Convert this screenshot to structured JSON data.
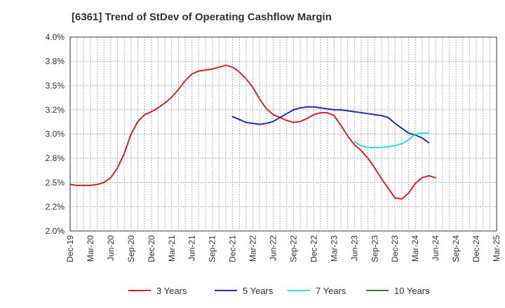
{
  "chart_data": {
    "type": "line",
    "title": "[6361]  Trend of StDev of Operating Cashflow Margin",
    "xlabel": "",
    "ylabel": "",
    "x_ticks": [
      "Dec-19",
      "Mar-20",
      "Jun-20",
      "Sep-20",
      "Dec-20",
      "Mar-21",
      "Jun-21",
      "Sep-21",
      "Dec-21",
      "Mar-22",
      "Jun-22",
      "Sep-22",
      "Dec-22",
      "Mar-23",
      "Jun-23",
      "Sep-23",
      "Dec-23",
      "Mar-24",
      "Jun-24",
      "Sep-24",
      "Dec-24",
      "Mar-25"
    ],
    "y_ticks": [
      "2.0%",
      "2.2%",
      "2.5%",
      "2.8%",
      "3.0%",
      "3.2%",
      "3.5%",
      "3.8%",
      "4.0%"
    ],
    "ylim": [
      2.0,
      4.0
    ],
    "grid": true,
    "legend_position": "bottom",
    "series": [
      {
        "name": "3 Years",
        "color": "#dd2222",
        "points": [
          [
            0,
            2.48
          ],
          [
            1,
            2.47
          ],
          [
            2,
            2.47
          ],
          [
            3,
            2.47
          ],
          [
            4,
            2.48
          ],
          [
            5,
            2.5
          ],
          [
            6,
            2.55
          ],
          [
            7,
            2.65
          ],
          [
            8,
            2.8
          ],
          [
            9,
            3.0
          ],
          [
            10,
            3.13
          ],
          [
            11,
            3.2
          ],
          [
            12,
            3.23
          ],
          [
            13,
            3.27
          ],
          [
            14,
            3.32
          ],
          [
            15,
            3.38
          ],
          [
            16,
            3.46
          ],
          [
            17,
            3.55
          ],
          [
            18,
            3.62
          ],
          [
            19,
            3.65
          ],
          [
            20,
            3.66
          ],
          [
            21,
            3.67
          ],
          [
            22,
            3.69
          ],
          [
            23,
            3.71
          ],
          [
            24,
            3.69
          ],
          [
            25,
            3.64
          ],
          [
            26,
            3.57
          ],
          [
            27,
            3.48
          ],
          [
            28,
            3.36
          ],
          [
            29,
            3.26
          ],
          [
            30,
            3.2
          ],
          [
            31,
            3.17
          ],
          [
            32,
            3.14
          ],
          [
            33,
            3.12
          ],
          [
            34,
            3.13
          ],
          [
            35,
            3.16
          ],
          [
            36,
            3.2
          ],
          [
            37,
            3.22
          ],
          [
            38,
            3.22
          ],
          [
            39,
            3.19
          ],
          [
            40,
            3.09
          ],
          [
            41,
            2.98
          ],
          [
            42,
            2.89
          ],
          [
            43,
            2.83
          ],
          [
            44,
            2.75
          ],
          [
            45,
            2.65
          ],
          [
            46,
            2.54
          ],
          [
            47,
            2.44
          ],
          [
            48,
            2.34
          ],
          [
            49,
            2.33
          ],
          [
            50,
            2.39
          ],
          [
            51,
            2.49
          ],
          [
            52,
            2.55
          ],
          [
            53,
            2.57
          ],
          [
            54,
            2.55
          ]
        ]
      },
      {
        "name": "5 Years",
        "color": "#1a2fbf",
        "points": [
          [
            24,
            3.18
          ],
          [
            25,
            3.15
          ],
          [
            26,
            3.12
          ],
          [
            27,
            3.11
          ],
          [
            28,
            3.1
          ],
          [
            29,
            3.11
          ],
          [
            30,
            3.13
          ],
          [
            31,
            3.17
          ],
          [
            32,
            3.21
          ],
          [
            33,
            3.25
          ],
          [
            34,
            3.27
          ],
          [
            35,
            3.28
          ],
          [
            36,
            3.28
          ],
          [
            37,
            3.27
          ],
          [
            38,
            3.26
          ],
          [
            39,
            3.25
          ],
          [
            40,
            3.25
          ],
          [
            41,
            3.24
          ],
          [
            42,
            3.23
          ],
          [
            43,
            3.22
          ],
          [
            44,
            3.21
          ],
          [
            45,
            3.2
          ],
          [
            46,
            3.19
          ],
          [
            47,
            3.17
          ],
          [
            48,
            3.11
          ],
          [
            49,
            3.06
          ],
          [
            50,
            3.01
          ],
          [
            51,
            2.99
          ],
          [
            52,
            2.96
          ],
          [
            53,
            2.91
          ]
        ]
      },
      {
        "name": "7 Years",
        "color": "#22e5e5",
        "points": [
          [
            42,
            2.92
          ],
          [
            43,
            2.88
          ],
          [
            44,
            2.86
          ],
          [
            45,
            2.86
          ],
          [
            46,
            2.86
          ],
          [
            47,
            2.87
          ],
          [
            48,
            2.88
          ],
          [
            49,
            2.9
          ],
          [
            50,
            2.94
          ],
          [
            51,
            3.0
          ],
          [
            52,
            3.01
          ],
          [
            53,
            3.01
          ]
        ]
      },
      {
        "name": "10 Years",
        "color": "#228b22",
        "points": []
      }
    ]
  }
}
